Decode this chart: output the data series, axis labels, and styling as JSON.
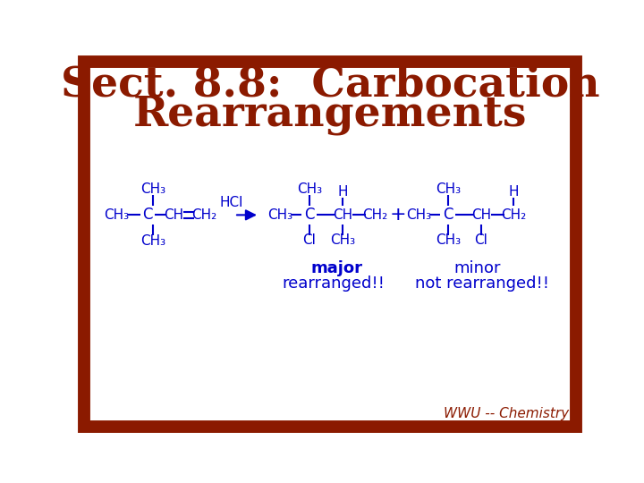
{
  "title_line1": "Sect. 8.8:  Carbocation",
  "title_line2": "Rearrangements",
  "title_color": "#8B1A00",
  "title_fontsize": 34,
  "chem_color": "#0000CC",
  "chem_fontsize": 12,
  "label_fontsize": 13,
  "small_fontsize": 11,
  "background_color": "#FFFFFF",
  "border_color": "#8B1A00",
  "border_width": 10,
  "wwu_text": "WWU -- Chemistry",
  "wwu_color": "#8B1A00",
  "wwu_fontsize": 11,
  "major_text": "major",
  "minor_text": "minor",
  "rearranged_text": "rearranged!!",
  "not_rearranged_text": "not rearranged!!"
}
